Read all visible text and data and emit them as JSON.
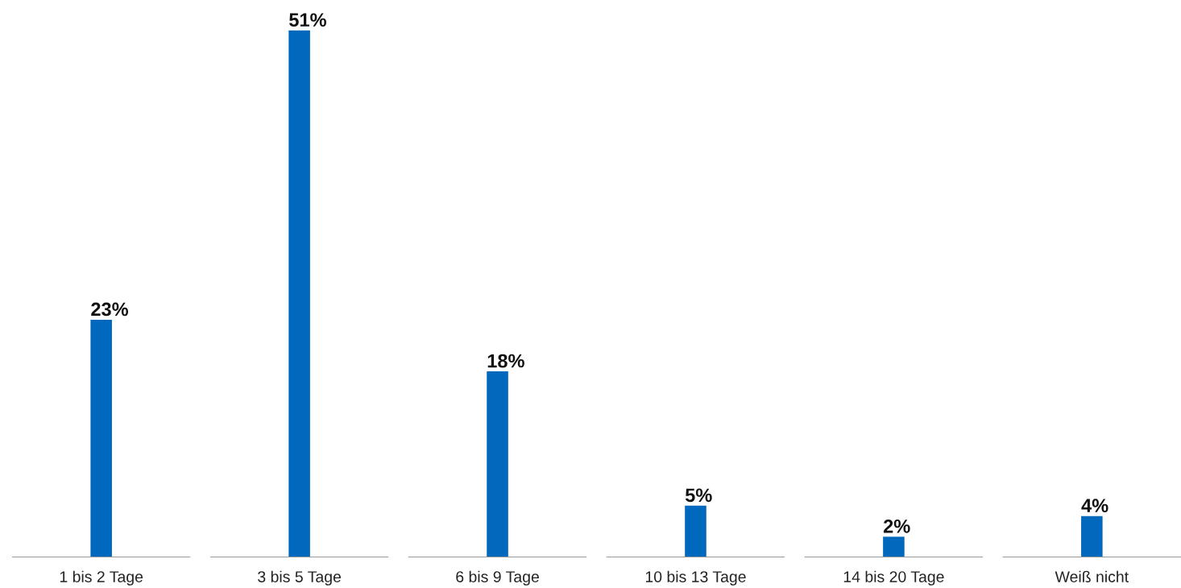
{
  "chart_data": {
    "type": "bar",
    "categories": [
      "1 bis 2 Tage",
      "3 bis 5 Tage",
      "6 bis 9 Tage",
      "10 bis 13 Tage",
      "14 bis 20 Tage",
      "Weiß nicht"
    ],
    "values": [
      23,
      51,
      18,
      5,
      2,
      4
    ],
    "color": "#0068bd",
    "value_labels": [
      "23%",
      "51%",
      "18%",
      "5%",
      "2%",
      "4%"
    ]
  }
}
